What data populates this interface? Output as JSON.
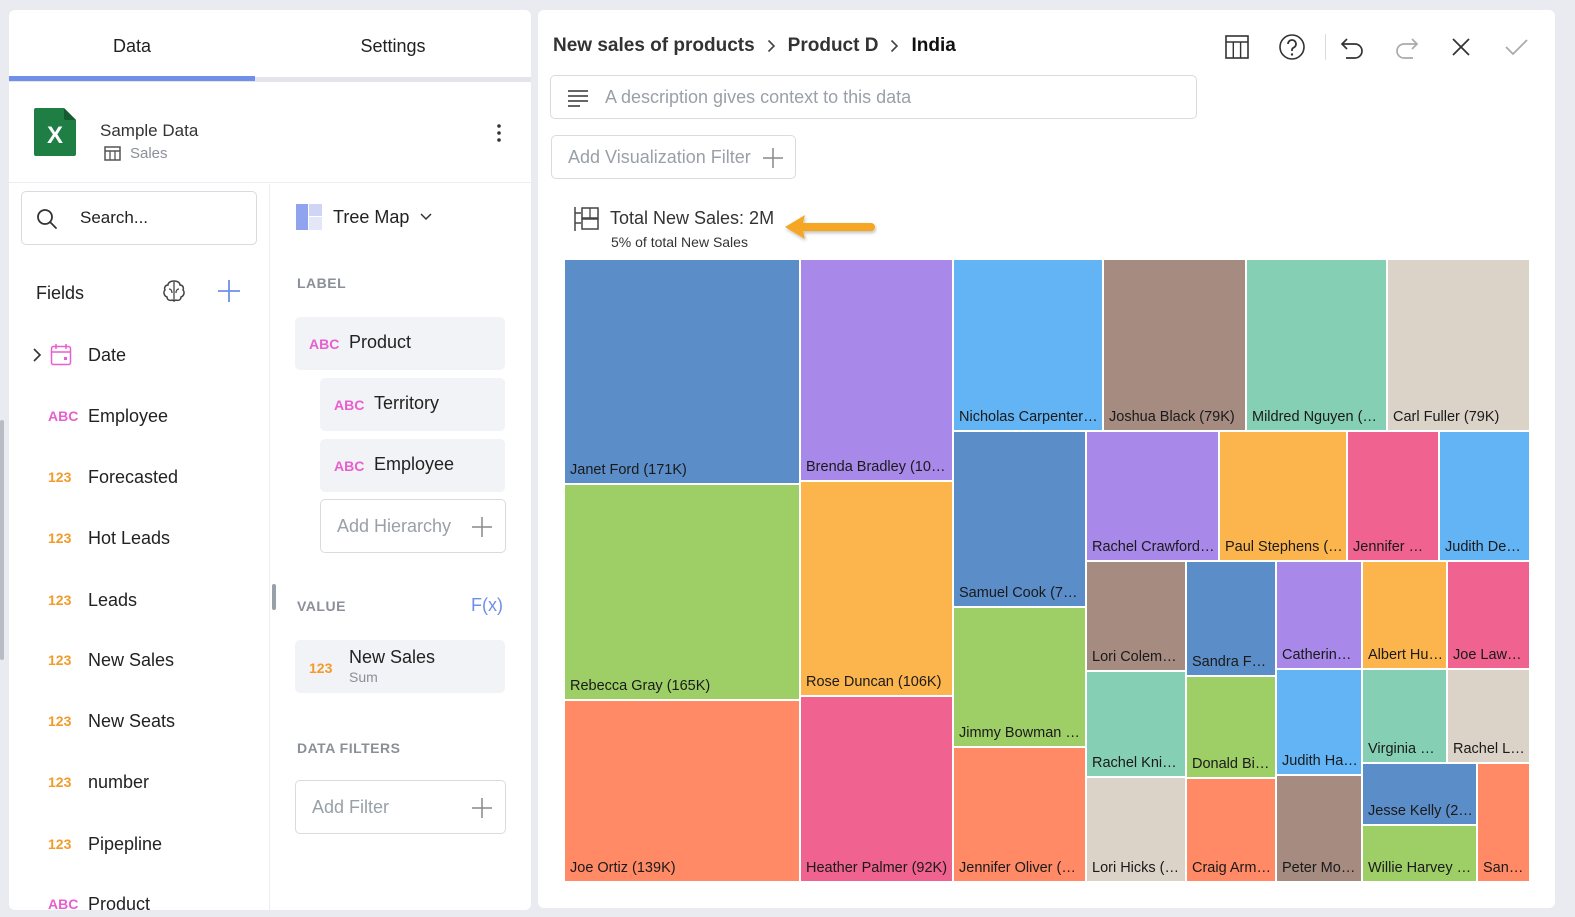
{
  "left_panel": {
    "tabs": [
      {
        "label": "Data",
        "active": true
      },
      {
        "label": "Settings",
        "active": false
      }
    ],
    "source": {
      "name": "Sample Data",
      "table": "Sales"
    },
    "search": {
      "placeholder": "Search..."
    },
    "fields_title": "Fields",
    "fields": [
      {
        "type": "date",
        "label": "Date"
      },
      {
        "type": "ABC",
        "label": "Employee"
      },
      {
        "type": "123",
        "label": "Forecasted"
      },
      {
        "type": "123",
        "label": "Hot Leads"
      },
      {
        "type": "123",
        "label": "Leads"
      },
      {
        "type": "123",
        "label": "New Sales"
      },
      {
        "type": "123",
        "label": "New Seats"
      },
      {
        "type": "123",
        "label": "number"
      },
      {
        "type": "123",
        "label": "Pipepline"
      },
      {
        "type": "ABC",
        "label": "Product"
      }
    ],
    "config": {
      "viz_type": "Tree Map",
      "label_section": "LABEL",
      "label_fields": [
        {
          "type": "ABC",
          "label": "Product"
        },
        {
          "type": "ABC",
          "label": "Territory"
        },
        {
          "type": "ABC",
          "label": "Employee"
        }
      ],
      "add_hierarchy": "Add Hierarchy",
      "value_section": "VALUE",
      "fx_label": "F(x)",
      "value_field": {
        "type": "123",
        "label": "New Sales",
        "aggregation": "Sum"
      },
      "filters_section": "DATA FILTERS",
      "add_filter": "Add Filter"
    }
  },
  "right_panel": {
    "breadcrumb": [
      "New sales of products",
      "Product D",
      "India"
    ],
    "toolbar": [
      "table-icon",
      "help-icon",
      "undo-icon",
      "redo-icon",
      "close-icon",
      "check-icon"
    ],
    "description": {
      "placeholder": "A description gives context to this data"
    },
    "add_viz_filter": "Add Visualization Filter",
    "viz_title": "Total New Sales: 2M",
    "viz_subtitle": "5% of total New Sales",
    "accent_arrow_color": "#f5a623"
  },
  "chart_data": {
    "type": "treemap",
    "tiles": [
      {
        "name": "Janet Ford (171K)",
        "color": "#5b8dc9"
      },
      {
        "name": "Brenda Bradley (109…",
        "color": "#a888e8"
      },
      {
        "name": "Nicholas Carpenter …",
        "color": "#62b4f5"
      },
      {
        "name": "Joshua Black (79K)",
        "color": "#a58b80"
      },
      {
        "name": "Mildred Nguyen (7…",
        "color": "#85d0b5"
      },
      {
        "name": "Carl Fuller (79K)",
        "color": "#dbd2c8"
      },
      {
        "name": "Rebecca Gray (165K)",
        "color": "#9ecf67"
      },
      {
        "name": "Rose Duncan (106K)",
        "color": "#fcb54c"
      },
      {
        "name": "Samuel Cook (76…",
        "color": "#5b8dc9"
      },
      {
        "name": "Rachel Crawford …",
        "color": "#a888e8"
      },
      {
        "name": "Paul Stephens (…",
        "color": "#fcb54c"
      },
      {
        "name": "Jennifer Wi…",
        "color": "#f0628f"
      },
      {
        "name": "Judith Dea…",
        "color": "#62b4f5"
      },
      {
        "name": "Jimmy Bowman (…",
        "color": "#9ecf67"
      },
      {
        "name": "Lori Colema…",
        "color": "#a58b80"
      },
      {
        "name": "Sandra Fo…",
        "color": "#5b8dc9"
      },
      {
        "name": "Catherine …",
        "color": "#a888e8"
      },
      {
        "name": "Albert Hu…",
        "color": "#fcb54c"
      },
      {
        "name": "Joe Lawr…",
        "color": "#f0628f"
      },
      {
        "name": "Joe Ortiz (139K)",
        "color": "#ff8a65"
      },
      {
        "name": "Heather Palmer (92K)",
        "color": "#f0628f"
      },
      {
        "name": "Jennifer Oliver (5…",
        "color": "#ff8a65"
      },
      {
        "name": "Rachel Knig…",
        "color": "#85d0b5"
      },
      {
        "name": "Donald Bis…",
        "color": "#9ecf67"
      },
      {
        "name": "Judith Ha…",
        "color": "#62b4f5"
      },
      {
        "name": "Virginia Ry…",
        "color": "#85d0b5"
      },
      {
        "name": "Rachel La…",
        "color": "#dbd2c8"
      },
      {
        "name": "Lori Hicks (…",
        "color": "#dbd2c8"
      },
      {
        "name": "Craig Arms…",
        "color": "#ff8a65"
      },
      {
        "name": "Peter Mor…",
        "color": "#a58b80"
      },
      {
        "name": "Jesse Kelly (2…",
        "color": "#5b8dc9"
      },
      {
        "name": "Willie Harvey (…",
        "color": "#9ecf67"
      },
      {
        "name": "Sandr…",
        "color": "#ff8a65"
      }
    ]
  }
}
